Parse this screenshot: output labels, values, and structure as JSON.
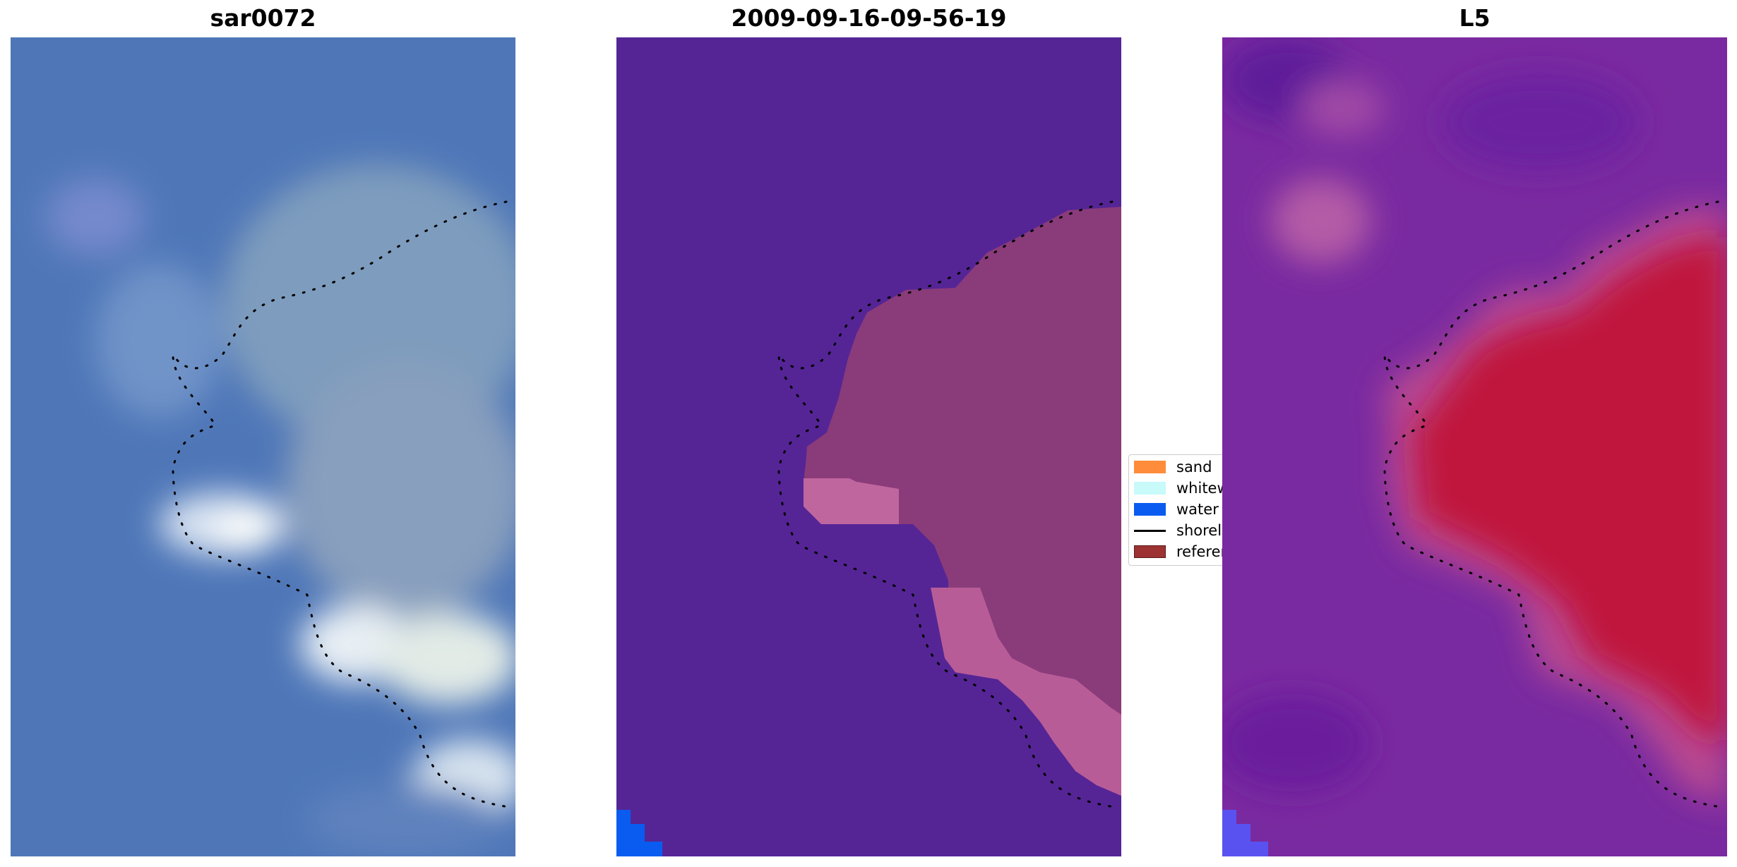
{
  "panels": [
    {
      "title": "sar0072"
    },
    {
      "title": "2009-09-16-09-56-19"
    },
    {
      "title": "L5"
    }
  ],
  "legend": {
    "items": [
      {
        "label": "sand",
        "color": "#ff8c3b",
        "kind": "patch"
      },
      {
        "label": "whitewater",
        "color": "#c8fafa",
        "kind": "patch"
      },
      {
        "label": "water",
        "color": "#0a5cf0",
        "kind": "patch"
      },
      {
        "label": "shoreline",
        "color": "#000000",
        "kind": "line"
      },
      {
        "label": "reference shoreline",
        "color": "#9c3232",
        "kind": "patch"
      }
    ]
  },
  "colors": {
    "rgb_background": "#4f77b8",
    "class_background": "#552596",
    "class_sand_overlay": "#8a3b7a",
    "class_sand_bright": "#c0669f",
    "class_water": "#0a5cf0",
    "mndwi_background": "#7a2aa0",
    "mndwi_land": "#c0183e",
    "shoreline_dots": "#000000"
  }
}
